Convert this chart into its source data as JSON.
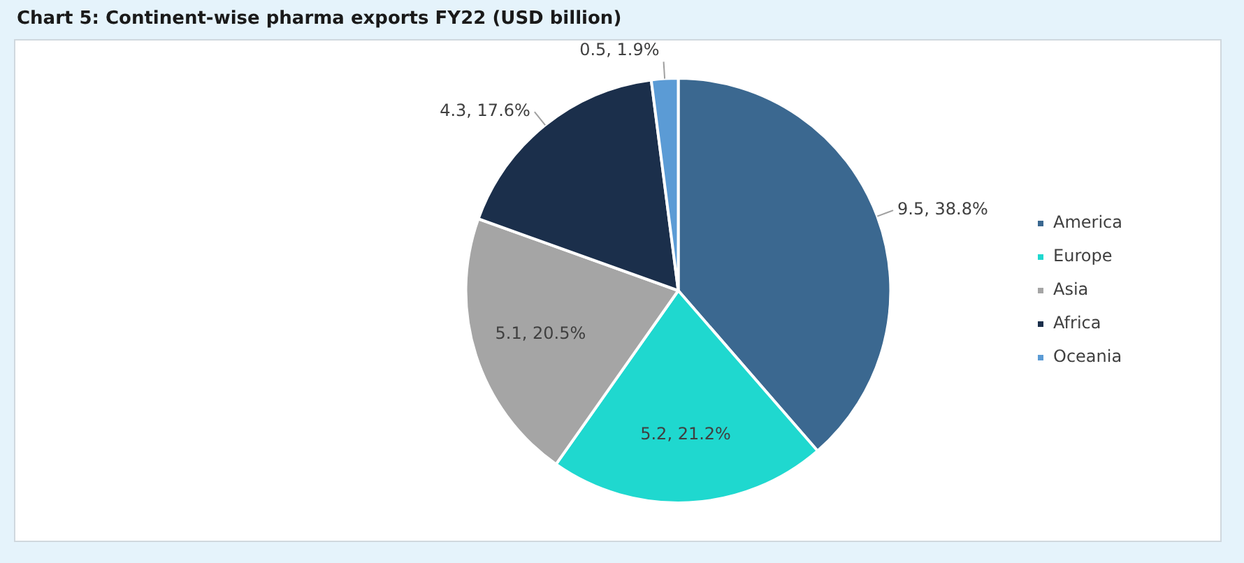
{
  "chart_data": {
    "type": "pie",
    "title": "Chart 5: Continent-wise pharma exports FY22 (USD billion)",
    "categories": [
      "America",
      "Europe",
      "Asia",
      "Africa",
      "Oceania"
    ],
    "values": [
      9.5,
      5.2,
      5.1,
      4.3,
      0.5
    ],
    "colors": [
      "#3b6890",
      "#1fd8cf",
      "#a5a5a5",
      "#1b2f4b",
      "#5b9bd5"
    ],
    "value_labels": [
      "9.5, 38.8%",
      "5.2, 21.2%",
      "5.1, 20.5%",
      "4.3, 17.6%",
      "0.5, 1.9%"
    ],
    "legend": "right"
  }
}
